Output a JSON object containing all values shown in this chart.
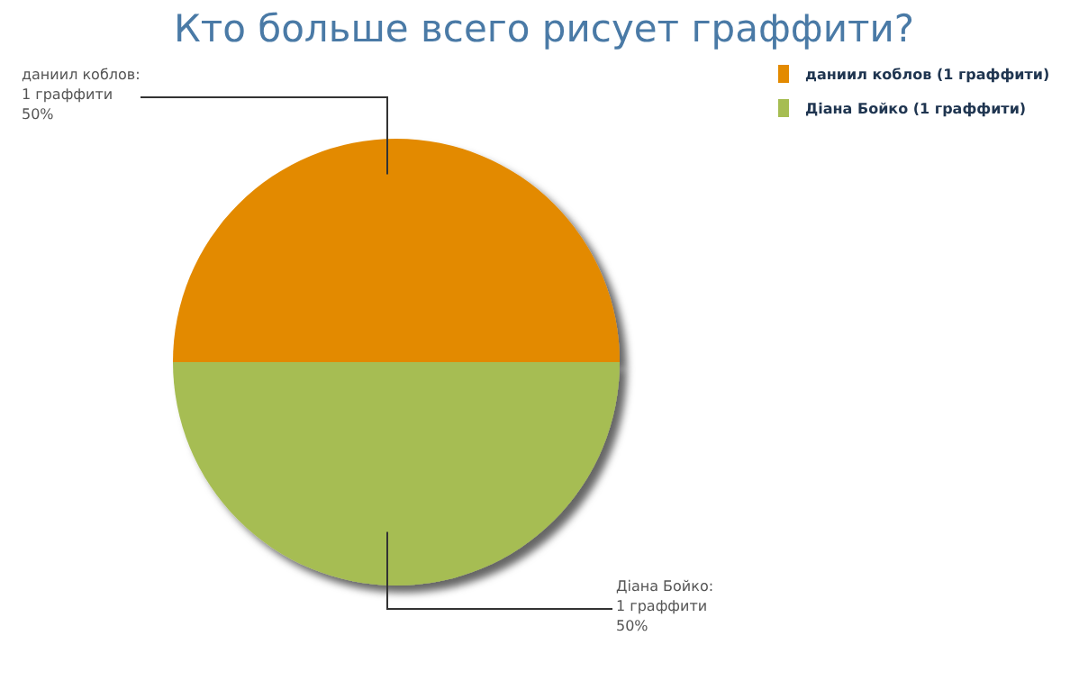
{
  "chart_data": {
    "type": "pie",
    "title": "Кто больше всего рисует граффити?",
    "categories": [
      "даниил коблов (1 граффити)",
      "Діана Бойко (1 граффити)"
    ],
    "values": [
      1,
      1
    ],
    "colors": [
      "#e38a00",
      "#a6bd52"
    ],
    "value_labels": [
      "даниил коблов:\n1 граффити\n50%",
      "Діана Бойко:\n1 граффити\n50%"
    ],
    "legend": "top right"
  }
}
